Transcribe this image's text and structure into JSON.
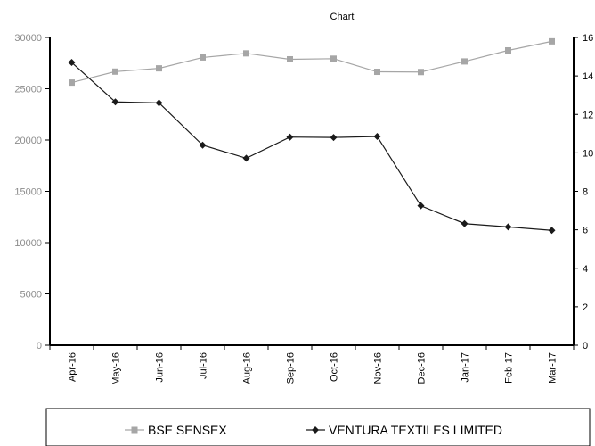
{
  "chart_data": {
    "type": "line",
    "title": "Chart",
    "categories": [
      "Apr-16",
      "May-16",
      "Jun-16",
      "Jul-16",
      "Aug-16",
      "Sep-16",
      "Oct-16",
      "Nov-16",
      "Dec-16",
      "Jan-17",
      "Feb-17",
      "Mar-17"
    ],
    "y_left": {
      "min": 0,
      "max": 30000,
      "ticks": [
        0,
        5000,
        10000,
        15000,
        20000,
        25000,
        30000
      ]
    },
    "y_right": {
      "min": 0,
      "max": 16,
      "ticks": [
        0,
        2,
        4,
        6,
        8,
        10,
        12,
        14,
        16
      ]
    },
    "series": [
      {
        "name": "BSE SENSEX",
        "axis": "left",
        "color": "#a6a6a6",
        "marker": "square",
        "values": [
          25600,
          26670,
          26990,
          28050,
          28450,
          27870,
          27930,
          26650,
          26630,
          27660,
          28740,
          29620
        ]
      },
      {
        "name": "VENTURA TEXTILES LIMITED",
        "axis": "right",
        "color": "#1a1a1a",
        "marker": "diamond",
        "values": [
          14.7,
          12.65,
          12.6,
          10.4,
          9.72,
          10.82,
          10.8,
          10.85,
          7.25,
          6.32,
          6.15,
          5.97
        ]
      }
    ],
    "grid": false,
    "legend": "bottom"
  }
}
